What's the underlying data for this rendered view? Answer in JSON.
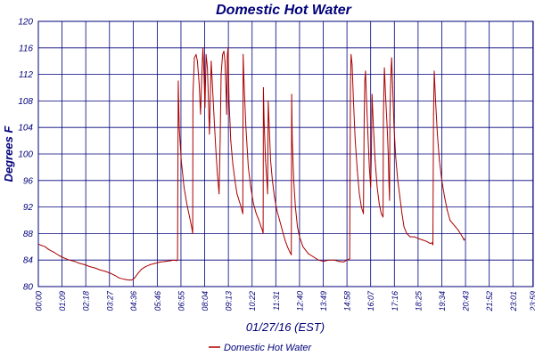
{
  "chart_data": {
    "type": "line",
    "title": "Domestic Hot Water",
    "xlabel": "01/27/16 (EST)",
    "ylabel": "Degrees F",
    "ylim": [
      80,
      120
    ],
    "yticks": [
      80,
      84,
      88,
      92,
      96,
      100,
      104,
      108,
      112,
      116,
      120
    ],
    "xlim": [
      0,
      1440
    ],
    "xticks": [
      {
        "label": "00:00",
        "t": 0
      },
      {
        "label": "01:09",
        "t": 69
      },
      {
        "label": "02:18",
        "t": 138
      },
      {
        "label": "03:27",
        "t": 207
      },
      {
        "label": "04:36",
        "t": 276
      },
      {
        "label": "05:46",
        "t": 346
      },
      {
        "label": "06:55",
        "t": 415
      },
      {
        "label": "08:04",
        "t": 484
      },
      {
        "label": "09:13",
        "t": 553
      },
      {
        "label": "10:22",
        "t": 622
      },
      {
        "label": "11:31",
        "t": 691
      },
      {
        "label": "12:40",
        "t": 760
      },
      {
        "label": "13:49",
        "t": 829
      },
      {
        "label": "14:58",
        "t": 898
      },
      {
        "label": "16:07",
        "t": 967
      },
      {
        "label": "17:16",
        "t": 1036
      },
      {
        "label": "18:25",
        "t": 1105
      },
      {
        "label": "19:34",
        "t": 1174
      },
      {
        "label": "20:43",
        "t": 1243
      },
      {
        "label": "21:52",
        "t": 1312
      },
      {
        "label": "23:01",
        "t": 1381
      },
      {
        "label": "23:59",
        "t": 1439
      }
    ],
    "grid": true,
    "legend_position": "bottom",
    "series": [
      {
        "name": "Domestic Hot Water",
        "color": "#aa0000",
        "points": [
          [
            0,
            86.4
          ],
          [
            10,
            86.2
          ],
          [
            20,
            86.0
          ],
          [
            30,
            85.6
          ],
          [
            45,
            85.2
          ],
          [
            60,
            84.7
          ],
          [
            75,
            84.3
          ],
          [
            90,
            84.0
          ],
          [
            105,
            83.8
          ],
          [
            120,
            83.5
          ],
          [
            135,
            83.3
          ],
          [
            150,
            83.0
          ],
          [
            165,
            82.8
          ],
          [
            180,
            82.5
          ],
          [
            195,
            82.3
          ],
          [
            210,
            82.0
          ],
          [
            222,
            81.7
          ],
          [
            235,
            81.3
          ],
          [
            250,
            81.1
          ],
          [
            262,
            81.0
          ],
          [
            272,
            81.0
          ],
          [
            280,
            81.3
          ],
          [
            290,
            82.0
          ],
          [
            300,
            82.6
          ],
          [
            312,
            83.0
          ],
          [
            325,
            83.3
          ],
          [
            340,
            83.5
          ],
          [
            355,
            83.7
          ],
          [
            370,
            83.8
          ],
          [
            385,
            83.9
          ],
          [
            395,
            84.0
          ],
          [
            402,
            83.9
          ],
          [
            405,
            84.0
          ],
          [
            407,
            111.0
          ],
          [
            410,
            104.0
          ],
          [
            416,
            99.0
          ],
          [
            424,
            95.0
          ],
          [
            432,
            92.5
          ],
          [
            440,
            90.5
          ],
          [
            446,
            89.0
          ],
          [
            449,
            88.0
          ],
          [
            450,
            109.0
          ],
          [
            454,
            114.5
          ],
          [
            459,
            115.0
          ],
          [
            463,
            114.0
          ],
          [
            468,
            110.5
          ],
          [
            472,
            106.0
          ],
          [
            476,
            112.5
          ],
          [
            479,
            116.0
          ],
          [
            482,
            112.0
          ],
          [
            485,
            107.0
          ],
          [
            488,
            115.0
          ],
          [
            492,
            113.0
          ],
          [
            495,
            108.0
          ],
          [
            498,
            103.0
          ],
          [
            501,
            110.0
          ],
          [
            503,
            114.0
          ],
          [
            506,
            111.0
          ],
          [
            511,
            106.0
          ],
          [
            516,
            101.0
          ],
          [
            521,
            97.0
          ],
          [
            526,
            94.0
          ],
          [
            529,
            102.0
          ],
          [
            532,
            112.0
          ],
          [
            536,
            115.0
          ],
          [
            540,
            115.5
          ],
          [
            543,
            114.0
          ],
          [
            546,
            110.0
          ],
          [
            548,
            106.0
          ],
          [
            550,
            115.0
          ],
          [
            552,
            116.0
          ],
          [
            555,
            108.0
          ],
          [
            560,
            102.0
          ],
          [
            566,
            98.5
          ],
          [
            572,
            96.0
          ],
          [
            578,
            94.0
          ],
          [
            584,
            93.0
          ],
          [
            590,
            92.0
          ],
          [
            595,
            91.0
          ],
          [
            596,
            115.0
          ],
          [
            599,
            110.0
          ],
          [
            604,
            104.0
          ],
          [
            611,
            98.0
          ],
          [
            618,
            95.0
          ],
          [
            626,
            92.5
          ],
          [
            634,
            91.0
          ],
          [
            642,
            90.0
          ],
          [
            648,
            89.0
          ],
          [
            652,
            88.5
          ],
          [
            654,
            88.0
          ],
          [
            655,
            110.0
          ],
          [
            657,
            105.0
          ],
          [
            661,
            99.0
          ],
          [
            665,
            96.0
          ],
          [
            667,
            94.0
          ],
          [
            669,
            108.0
          ],
          [
            672,
            104.0
          ],
          [
            676,
            99.0
          ],
          [
            681,
            96.0
          ],
          [
            687,
            93.5
          ],
          [
            694,
            91.5
          ],
          [
            702,
            90.0
          ],
          [
            710,
            88.5
          ],
          [
            718,
            87.0
          ],
          [
            725,
            86.0
          ],
          [
            732,
            85.2
          ],
          [
            736,
            84.8
          ],
          [
            737,
            109.0
          ],
          [
            739,
            102.0
          ],
          [
            743,
            96.0
          ],
          [
            748,
            92.0
          ],
          [
            754,
            89.0
          ],
          [
            760,
            87.5
          ],
          [
            770,
            86.0
          ],
          [
            785,
            85.0
          ],
          [
            800,
            84.5
          ],
          [
            815,
            84.0
          ],
          [
            830,
            83.8
          ],
          [
            845,
            84.0
          ],
          [
            860,
            84.0
          ],
          [
            875,
            83.8
          ],
          [
            888,
            83.7
          ],
          [
            898,
            84.0
          ],
          [
            906,
            84.2
          ],
          [
            908,
            110.0
          ],
          [
            910,
            115.0
          ],
          [
            913,
            113.5
          ],
          [
            917,
            108.0
          ],
          [
            922,
            102.0
          ],
          [
            928,
            97.5
          ],
          [
            934,
            94.0
          ],
          [
            940,
            92.0
          ],
          [
            946,
            91.0
          ],
          [
            948,
            105.0
          ],
          [
            950,
            111.0
          ],
          [
            952,
            112.5
          ],
          [
            955,
            108.0
          ],
          [
            959,
            103.0
          ],
          [
            963,
            98.0
          ],
          [
            967,
            95.0
          ],
          [
            969,
            100.0
          ],
          [
            971,
            109.0
          ],
          [
            975,
            104.0
          ],
          [
            980,
            99.0
          ],
          [
            986,
            95.0
          ],
          [
            992,
            92.5
          ],
          [
            998,
            91.0
          ],
          [
            1003,
            90.5
          ],
          [
            1004,
            106.0
          ],
          [
            1007,
            113.0
          ],
          [
            1011,
            108.0
          ],
          [
            1015,
            104.0
          ],
          [
            1018,
            100.0
          ],
          [
            1020,
            96.0
          ],
          [
            1022,
            93.0
          ],
          [
            1023,
            106.0
          ],
          [
            1026,
            112.0
          ],
          [
            1028,
            114.5
          ],
          [
            1031,
            110.0
          ],
          [
            1035,
            104.0
          ],
          [
            1040,
            99.5
          ],
          [
            1046,
            96.0
          ],
          [
            1052,
            93.5
          ],
          [
            1058,
            91.0
          ],
          [
            1064,
            89.0
          ],
          [
            1072,
            88.0
          ],
          [
            1082,
            87.5
          ],
          [
            1095,
            87.5
          ],
          [
            1108,
            87.2
          ],
          [
            1120,
            87.0
          ],
          [
            1130,
            86.8
          ],
          [
            1140,
            86.5
          ],
          [
            1145,
            86.6
          ],
          [
            1148,
            86.3
          ],
          [
            1150,
            106.0
          ],
          [
            1152,
            112.5
          ],
          [
            1156,
            108.0
          ],
          [
            1161,
            103.0
          ],
          [
            1167,
            99.0
          ],
          [
            1174,
            96.0
          ],
          [
            1182,
            93.5
          ],
          [
            1190,
            91.5
          ],
          [
            1198,
            90.0
          ],
          [
            1206,
            89.5
          ],
          [
            1214,
            89.0
          ],
          [
            1222,
            88.5
          ],
          [
            1228,
            88.0
          ],
          [
            1234,
            87.5
          ],
          [
            1239,
            87.0
          ],
          [
            1240,
            87.2
          ]
        ]
      }
    ]
  }
}
